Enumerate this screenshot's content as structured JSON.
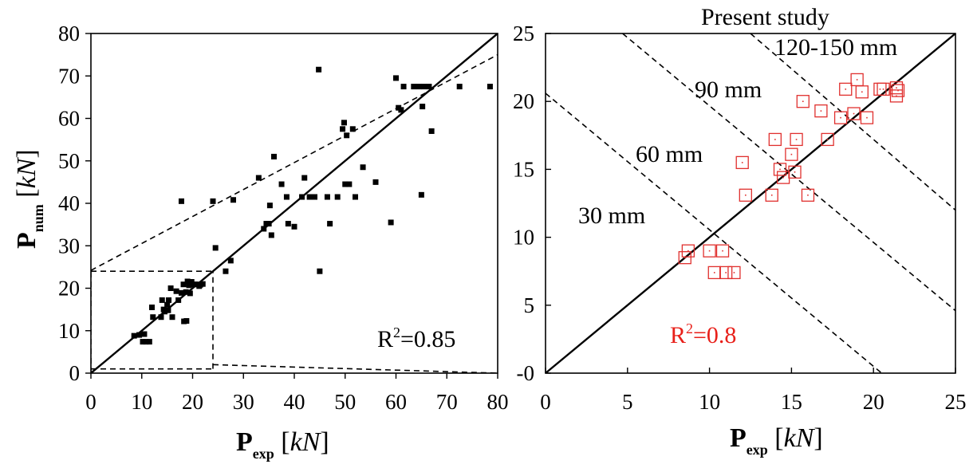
{
  "colors": {
    "left_points": "#000000",
    "right_points": "#e0302e",
    "right_r2": "#e8201a",
    "axes": "#000000"
  },
  "chart_data": [
    {
      "type": "scatter",
      "xlim": [
        0,
        80
      ],
      "ylim": [
        0,
        80
      ],
      "xticks": [
        "0",
        "10",
        "20",
        "30",
        "40",
        "50",
        "60",
        "70",
        "80"
      ],
      "yticks": [
        "0",
        "10",
        "20",
        "30",
        "40",
        "50",
        "60",
        "70",
        "80"
      ],
      "xlabel": {
        "main": "P",
        "sub": "exp",
        "unit_open": " [",
        "unit": "kN",
        "unit_close": "]"
      },
      "ylabel": {
        "main": "P",
        "sub": "num",
        "unit_open": " [",
        "unit": "kN",
        "unit_close": "]"
      },
      "r2_text": "R",
      "r2_sup": "2",
      "r2_value": "=0.85",
      "reference_lines": [
        {
          "style": "solid",
          "from": [
            0,
            0
          ],
          "to": [
            80,
            80
          ]
        },
        {
          "style": "dashed",
          "from": [
            0,
            24.2
          ],
          "to": [
            80,
            75
          ]
        },
        {
          "style": "dashed",
          "from": [
            0,
            1
          ],
          "to": [
            24,
            1
          ]
        },
        {
          "style": "dashed",
          "from": [
            24,
            2
          ],
          "to": [
            80,
            0
          ]
        },
        {
          "style": "dashed",
          "from": [
            24,
            1
          ],
          "to": [
            24,
            24
          ]
        },
        {
          "style": "dashed",
          "from": [
            0,
            24
          ],
          "to": [
            24,
            24
          ]
        },
        {
          "style": "dashed",
          "from": [
            0,
            0
          ],
          "to": [
            0,
            24
          ]
        }
      ],
      "points": [
        [
          8.5,
          8.8
        ],
        [
          9.5,
          9.0
        ],
        [
          10.2,
          7.4
        ],
        [
          10.8,
          7.4
        ],
        [
          11.5,
          7.4
        ],
        [
          10.5,
          9.2
        ],
        [
          12.0,
          15.5
        ],
        [
          12.2,
          13.2
        ],
        [
          13.8,
          13.2
        ],
        [
          14.0,
          17.2
        ],
        [
          14.3,
          15.0
        ],
        [
          14.5,
          14.5
        ],
        [
          15.0,
          16.1
        ],
        [
          15.2,
          14.8
        ],
        [
          15.3,
          17.2
        ],
        [
          15.7,
          20.0
        ],
        [
          16.0,
          13.2
        ],
        [
          16.8,
          19.3
        ],
        [
          17.2,
          17.2
        ],
        [
          17.8,
          18.9
        ],
        [
          18.2,
          20.9
        ],
        [
          18.7,
          19.1
        ],
        [
          19.0,
          21.6
        ],
        [
          19.3,
          20.7
        ],
        [
          19.5,
          18.8
        ],
        [
          20.3,
          20.9
        ],
        [
          20.5,
          20.9
        ],
        [
          21.3,
          20.5
        ],
        [
          21.4,
          20.9
        ],
        [
          21.5,
          20.8
        ],
        [
          17.8,
          40.5
        ],
        [
          18.3,
          12.2
        ],
        [
          18.8,
          12.3
        ],
        [
          19.8,
          21.5
        ],
        [
          22.0,
          21.0
        ],
        [
          24.0,
          40.5
        ],
        [
          24.5,
          29.5
        ],
        [
          26.5,
          24.0
        ],
        [
          27.5,
          26.5
        ],
        [
          28.0,
          40.8
        ],
        [
          33.0,
          46.0
        ],
        [
          34.0,
          34.0
        ],
        [
          34.5,
          35.2
        ],
        [
          35.0,
          35.2
        ],
        [
          35.2,
          39.5
        ],
        [
          35.5,
          32.5
        ],
        [
          36.0,
          51.0
        ],
        [
          37.5,
          44.5
        ],
        [
          38.5,
          41.5
        ],
        [
          38.8,
          35.2
        ],
        [
          40.0,
          34.5
        ],
        [
          41.5,
          41.5
        ],
        [
          42.0,
          46.0
        ],
        [
          43.0,
          41.5
        ],
        [
          43.5,
          41.5
        ],
        [
          44.0,
          41.5
        ],
        [
          44.8,
          71.5
        ],
        [
          45.0,
          24.0
        ],
        [
          46.5,
          41.5
        ],
        [
          47.0,
          35.2
        ],
        [
          48.5,
          41.5
        ],
        [
          49.5,
          57.5
        ],
        [
          49.8,
          59.0
        ],
        [
          50.0,
          44.5
        ],
        [
          50.3,
          56.0
        ],
        [
          50.8,
          44.5
        ],
        [
          51.5,
          57.5
        ],
        [
          52.0,
          41.5
        ],
        [
          53.5,
          48.5
        ],
        [
          56.0,
          45.0
        ],
        [
          59.0,
          35.5
        ],
        [
          60.0,
          69.5
        ],
        [
          60.5,
          62.5
        ],
        [
          61.0,
          62.0
        ],
        [
          61.5,
          67.5
        ],
        [
          63.5,
          67.5
        ],
        [
          64.5,
          67.5
        ],
        [
          65.0,
          42.0
        ],
        [
          65.2,
          62.8
        ],
        [
          65.5,
          67.5
        ],
        [
          66.5,
          67.5
        ],
        [
          67.0,
          57.0
        ],
        [
          72.5,
          67.5
        ],
        [
          78.5,
          67.5
        ]
      ]
    },
    {
      "type": "scatter",
      "title": "Present study",
      "xlim": [
        0,
        25
      ],
      "ylim": [
        0,
        25
      ],
      "xticks": [
        "0",
        "5",
        "10",
        "15",
        "20",
        "25"
      ],
      "yticks": [
        "-0",
        "5",
        "10",
        "15",
        "20",
        "25"
      ],
      "xlabel": {
        "main": "P",
        "sub": "exp",
        "unit_open": " [",
        "unit": "kN",
        "unit_close": "]"
      },
      "r2_text": "R",
      "r2_sup": "2",
      "r2_value": "=0.8",
      "reference_lines": [
        {
          "style": "solid",
          "from": [
            0,
            0
          ],
          "to": [
            25,
            25
          ]
        },
        {
          "style": "dashed",
          "from": [
            0,
            20.6
          ],
          "to": [
            20.5,
            0
          ]
        },
        {
          "style": "dashed",
          "from": [
            4.7,
            25
          ],
          "to": [
            25,
            4.6
          ]
        },
        {
          "style": "dashed",
          "from": [
            12.5,
            25
          ],
          "to": [
            25,
            12.0
          ]
        },
        {
          "style": "dashed",
          "from": [
            -1,
            24
          ],
          "to": [
            0,
            24.6
          ]
        }
      ],
      "annotations": [
        "30 mm",
        "60 mm",
        "90 mm",
        "120-150 mm"
      ],
      "points": [
        [
          8.5,
          8.5
        ],
        [
          8.7,
          9.0
        ],
        [
          10.0,
          9.0
        ],
        [
          10.3,
          7.4
        ],
        [
          10.8,
          9.0
        ],
        [
          11.0,
          7.4
        ],
        [
          11.5,
          7.4
        ],
        [
          12.0,
          15.5
        ],
        [
          12.2,
          13.1
        ],
        [
          13.8,
          13.1
        ],
        [
          14.0,
          17.2
        ],
        [
          14.3,
          15.0
        ],
        [
          14.5,
          14.4
        ],
        [
          15.0,
          16.1
        ],
        [
          15.2,
          14.8
        ],
        [
          15.3,
          17.2
        ],
        [
          15.7,
          20.0
        ],
        [
          16.0,
          13.1
        ],
        [
          16.8,
          19.3
        ],
        [
          17.2,
          17.2
        ],
        [
          18.0,
          18.8
        ],
        [
          18.3,
          20.9
        ],
        [
          18.8,
          19.1
        ],
        [
          19.0,
          21.6
        ],
        [
          19.3,
          20.7
        ],
        [
          19.6,
          18.8
        ],
        [
          20.4,
          20.9
        ],
        [
          20.6,
          20.9
        ],
        [
          21.4,
          20.4
        ],
        [
          21.5,
          20.8
        ],
        [
          21.4,
          21.0
        ]
      ]
    }
  ]
}
